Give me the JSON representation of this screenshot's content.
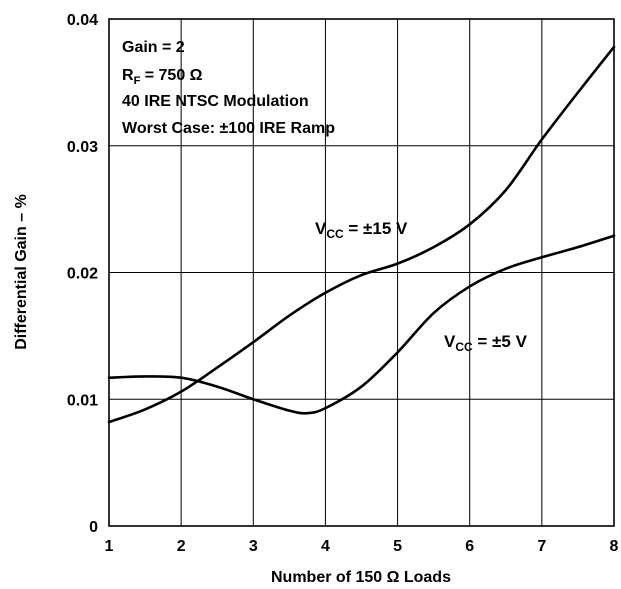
{
  "chart_data": {
    "type": "line",
    "xlabel": "Number of 150 Ω Loads",
    "ylabel": "Differential Gain – %",
    "xlim": [
      1,
      8
    ],
    "ylim": [
      0,
      0.04
    ],
    "x_ticks": [
      "1",
      "2",
      "3",
      "4",
      "5",
      "6",
      "7",
      "8"
    ],
    "y_ticks": [
      "0",
      "0.01",
      "0.02",
      "0.03",
      "0.04"
    ],
    "grid": true,
    "conditions": {
      "line1": "Gain = 2",
      "line2_main": "R",
      "line2_sub": "F",
      "line2_rest": " = 750 Ω",
      "line3": "40 IRE NTSC Modulation",
      "line4": "Worst Case: ±100 IRE Ramp"
    },
    "series": [
      {
        "name_main": "V",
        "name_sub": "CC",
        "name_rest": " = ±15 V",
        "x": [
          1,
          1.5,
          2,
          2.5,
          3,
          3.5,
          4,
          4.5,
          5,
          5.5,
          6,
          6.5,
          7,
          7.5,
          8
        ],
        "values": [
          0.0082,
          0.0092,
          0.0106,
          0.0125,
          0.0145,
          0.0166,
          0.0184,
          0.0198,
          0.0207,
          0.022,
          0.0238,
          0.0265,
          0.0305,
          0.0342,
          0.0378
        ]
      },
      {
        "name_main": "V",
        "name_sub": "CC",
        "name_rest": " = ±5 V",
        "x": [
          1,
          1.5,
          2,
          2.5,
          3,
          3.5,
          3.75,
          4,
          4.5,
          5,
          5.5,
          6,
          6.5,
          7,
          7.5,
          8
        ],
        "values": [
          0.0117,
          0.0118,
          0.0117,
          0.011,
          0.01,
          0.0091,
          0.0089,
          0.0093,
          0.011,
          0.0137,
          0.0168,
          0.0189,
          0.0203,
          0.0212,
          0.022,
          0.0229
        ]
      }
    ]
  }
}
